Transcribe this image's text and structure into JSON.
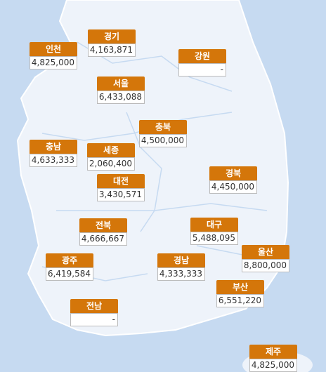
{
  "regions": [
    {
      "name": "경기",
      "value": "4,163,871"
    },
    {
      "name": "인천",
      "value": "4,825,000"
    },
    {
      "name": "강원",
      "value": "-"
    },
    {
      "name": "서울",
      "value": "6,433,088"
    },
    {
      "name": "충북",
      "value": "4,500,000"
    },
    {
      "name": "충남",
      "value": "4,633,333"
    },
    {
      "name": "세종",
      "value": "2,060,400"
    },
    {
      "name": "대전",
      "value": "3,430,571"
    },
    {
      "name": "경북",
      "value": "4,450,000"
    },
    {
      "name": "전북",
      "value": "4,666,667"
    },
    {
      "name": "대구",
      "value": "5,488,095"
    },
    {
      "name": "울산",
      "value": "8,800,000"
    },
    {
      "name": "광주",
      "value": "6,419,584"
    },
    {
      "name": "경남",
      "value": "4,333,333"
    },
    {
      "name": "부산",
      "value": "6,551,220"
    },
    {
      "name": "전남",
      "value": "-"
    },
    {
      "name": "제주",
      "value": "4,825,000"
    }
  ]
}
